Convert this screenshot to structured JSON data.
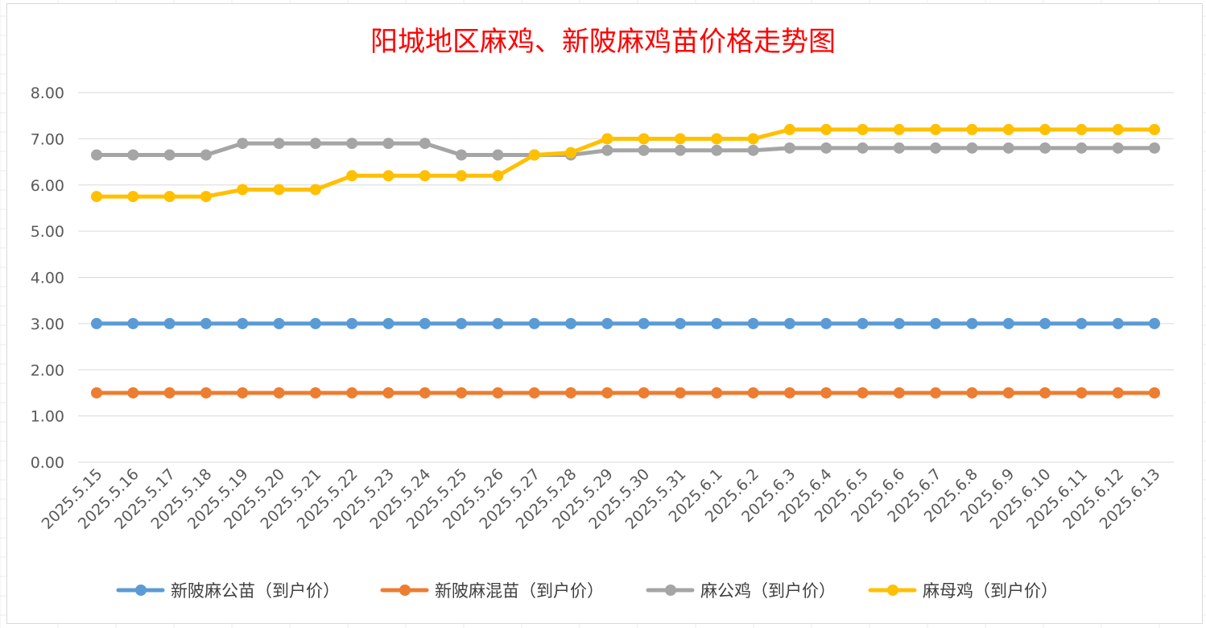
{
  "chart_data": {
    "type": "line",
    "title": "阳城地区麻鸡、新陂麻鸡苗价格走势图",
    "xlabel": "",
    "ylabel": "",
    "ylim": [
      0,
      8
    ],
    "yticks": [
      "0.00",
      "1.00",
      "2.00",
      "3.00",
      "4.00",
      "5.00",
      "6.00",
      "7.00",
      "8.00"
    ],
    "grid": true,
    "legend_position": "bottom",
    "categories": [
      "2025.5.15",
      "2025.5.16",
      "2025.5.17",
      "2025.5.18",
      "2025.5.19",
      "2025.5.20",
      "2025.5.21",
      "2025.5.22",
      "2025.5.23",
      "2025.5.24",
      "2025.5.25",
      "2025.5.26",
      "2025.5.27",
      "2025.5.28",
      "2025.5.29",
      "2025.5.30",
      "2025.5.31",
      "2025.6.1",
      "2025.6.2",
      "2025.6.3",
      "2025.6.4",
      "2025.6.5",
      "2025.6.6",
      "2025.6.7",
      "2025.6.8",
      "2025.6.9",
      "2025.6.10",
      "2025.6.11",
      "2025.6.12",
      "2025.6.13"
    ],
    "series": [
      {
        "name": "新陂麻公苗（到户价）",
        "color": "#5b9bd5",
        "values": [
          3,
          3,
          3,
          3,
          3,
          3,
          3,
          3,
          3,
          3,
          3,
          3,
          3,
          3,
          3,
          3,
          3,
          3,
          3,
          3,
          3,
          3,
          3,
          3,
          3,
          3,
          3,
          3,
          3,
          3
        ]
      },
      {
        "name": "新陂麻混苗（到户价）",
        "color": "#ed7d31",
        "values": [
          1.5,
          1.5,
          1.5,
          1.5,
          1.5,
          1.5,
          1.5,
          1.5,
          1.5,
          1.5,
          1.5,
          1.5,
          1.5,
          1.5,
          1.5,
          1.5,
          1.5,
          1.5,
          1.5,
          1.5,
          1.5,
          1.5,
          1.5,
          1.5,
          1.5,
          1.5,
          1.5,
          1.5,
          1.5,
          1.5
        ]
      },
      {
        "name": "麻公鸡（到户价）",
        "color": "#a5a5a5",
        "values": [
          6.65,
          6.65,
          6.65,
          6.65,
          6.9,
          6.9,
          6.9,
          6.9,
          6.9,
          6.9,
          6.65,
          6.65,
          6.65,
          6.65,
          6.75,
          6.75,
          6.75,
          6.75,
          6.75,
          6.8,
          6.8,
          6.8,
          6.8,
          6.8,
          6.8,
          6.8,
          6.8,
          6.8,
          6.8,
          6.8
        ]
      },
      {
        "name": "麻母鸡（到户价）",
        "color": "#ffc000",
        "values": [
          5.75,
          5.75,
          5.75,
          5.75,
          5.9,
          5.9,
          5.9,
          6.2,
          6.2,
          6.2,
          6.2,
          6.2,
          6.65,
          6.7,
          7.0,
          7.0,
          7.0,
          7.0,
          7.0,
          7.2,
          7.2,
          7.2,
          7.2,
          7.2,
          7.2,
          7.2,
          7.2,
          7.2,
          7.2,
          7.2
        ]
      }
    ]
  }
}
